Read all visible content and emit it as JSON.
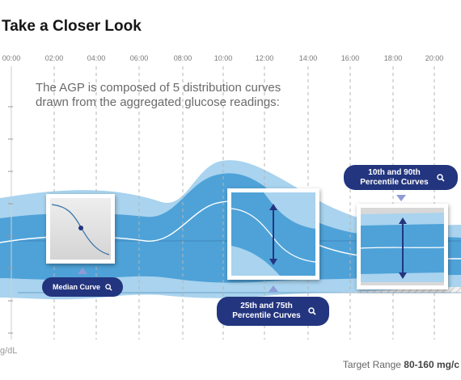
{
  "title": "Take a Closer Look",
  "time_axis": [
    "00:00",
    "02:00",
    "04:00",
    "06:00",
    "08:00",
    "10:00",
    "12:00",
    "14:00",
    "16:00",
    "18:00",
    "20:00"
  ],
  "y_axis_unit": "g/dL",
  "caption": "The AGP is composed of 5 distribution curves drawn from the aggregated glucose readings:",
  "callouts": {
    "median": "Median Curve",
    "p25_75": "25th and 75th Percentile Curves",
    "p10_90": "10th and 90th Percentile Curves"
  },
  "footer": {
    "label": "Target Range",
    "value": "80-160 mg/c"
  },
  "colors": {
    "band_outer": "#a9d3ee",
    "band_inner": "#4ea2d8",
    "callout": "#23357e",
    "arrow": "#8f9bd6",
    "hatch": "#c8c8c8"
  },
  "icons": {
    "search": "magnifier-icon"
  }
}
